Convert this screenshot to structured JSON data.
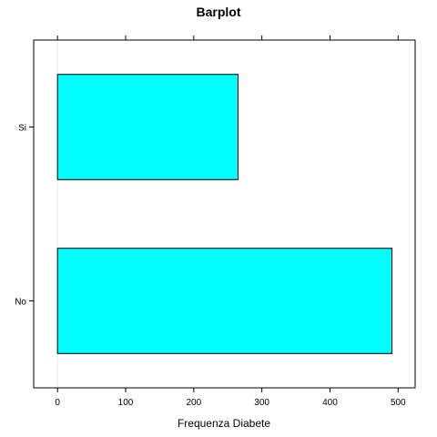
{
  "chart_data": {
    "type": "bar",
    "orientation": "horizontal",
    "title": "Barplot",
    "xlabel": "Frequenza Diabete",
    "ylabel": "",
    "categories": [
      "No",
      "Si"
    ],
    "values": [
      491,
      265
    ],
    "xlim": [
      -35,
      525
    ],
    "xticks": [
      0,
      100,
      200,
      300,
      400,
      500
    ],
    "grid": false,
    "legend": "none",
    "bar_color": "#00FFFF",
    "bar_outline_color": "#000000",
    "reference_line_color": "#E6E6E6"
  }
}
